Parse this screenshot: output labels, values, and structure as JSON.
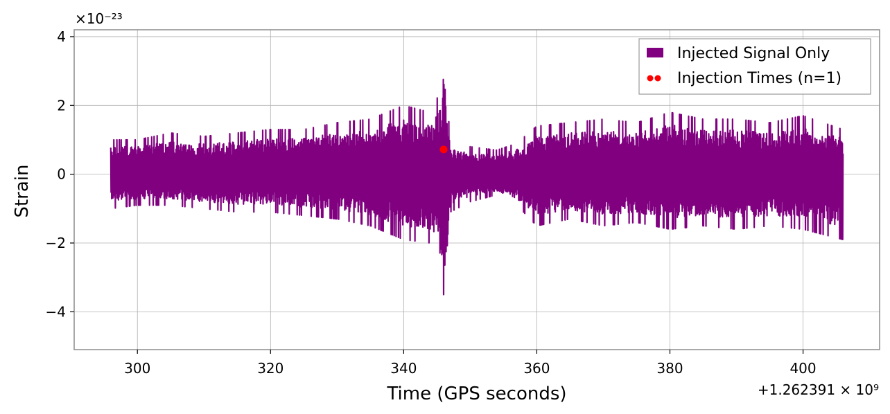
{
  "chart_data": {
    "type": "line",
    "xlabel": "Time (GPS seconds)",
    "ylabel": "Strain",
    "x_offset_label": "+1.262391 × 10⁹",
    "x_offset": 1262391000,
    "y_multiplier_label": "×10⁻²³",
    "y_scale": 1e-23,
    "xlim": [
      290.5,
      411.5
    ],
    "ylim": [
      -5.1,
      4.2
    ],
    "xticks": [
      300,
      320,
      340,
      360,
      380,
      400
    ],
    "xtick_labels": [
      "300",
      "320",
      "340",
      "360",
      "380",
      "400"
    ],
    "yticks": [
      4,
      2,
      0,
      -2,
      -4
    ],
    "ytick_labels": [
      "4",
      "2",
      "0",
      "−2",
      "−4"
    ],
    "grid": true,
    "legend_position": "top-right",
    "series": [
      {
        "name": "Injected Signal Only",
        "kind": "line",
        "color": "#800080",
        "x_range": [
          296,
          406
        ],
        "envelope": [
          {
            "x": 296,
            "lo": -1.0,
            "hi": 1.0
          },
          {
            "x": 300,
            "lo": -0.9,
            "hi": 1.0
          },
          {
            "x": 305,
            "lo": -0.9,
            "hi": 1.2
          },
          {
            "x": 310,
            "lo": -1.0,
            "hi": 1.1
          },
          {
            "x": 315,
            "lo": -1.1,
            "hi": 1.2
          },
          {
            "x": 320,
            "lo": -1.1,
            "hi": 1.3
          },
          {
            "x": 325,
            "lo": -1.2,
            "hi": 1.3
          },
          {
            "x": 330,
            "lo": -1.3,
            "hi": 1.5
          },
          {
            "x": 335,
            "lo": -1.5,
            "hi": 1.6
          },
          {
            "x": 340,
            "lo": -1.9,
            "hi": 2.0
          },
          {
            "x": 344,
            "lo": -2.0,
            "hi": 1.8
          },
          {
            "x": 345.5,
            "lo": -2.3,
            "hi": 2.4
          },
          {
            "x": 346,
            "lo": -4.7,
            "hi": 3.8
          },
          {
            "x": 347,
            "lo": -1.1,
            "hi": 0.9
          },
          {
            "x": 350,
            "lo": -0.8,
            "hi": 0.8
          },
          {
            "x": 354,
            "lo": -0.6,
            "hi": 0.7
          },
          {
            "x": 357,
            "lo": -0.9,
            "hi": 0.9
          },
          {
            "x": 360,
            "lo": -1.5,
            "hi": 1.4
          },
          {
            "x": 365,
            "lo": -1.3,
            "hi": 1.5
          },
          {
            "x": 370,
            "lo": -1.5,
            "hi": 1.6
          },
          {
            "x": 375,
            "lo": -1.4,
            "hi": 1.5
          },
          {
            "x": 380,
            "lo": -1.6,
            "hi": 1.8
          },
          {
            "x": 385,
            "lo": -1.5,
            "hi": 1.6
          },
          {
            "x": 390,
            "lo": -1.6,
            "hi": 1.6
          },
          {
            "x": 395,
            "lo": -1.5,
            "hi": 1.5
          },
          {
            "x": 400,
            "lo": -1.6,
            "hi": 1.7
          },
          {
            "x": 406,
            "lo": -1.9,
            "hi": 1.3
          }
        ]
      },
      {
        "name": "Injection Times (n=1)",
        "kind": "scatter",
        "color": "#ff0000",
        "points": [
          {
            "x": 346,
            "y": 0.72
          }
        ]
      }
    ]
  }
}
